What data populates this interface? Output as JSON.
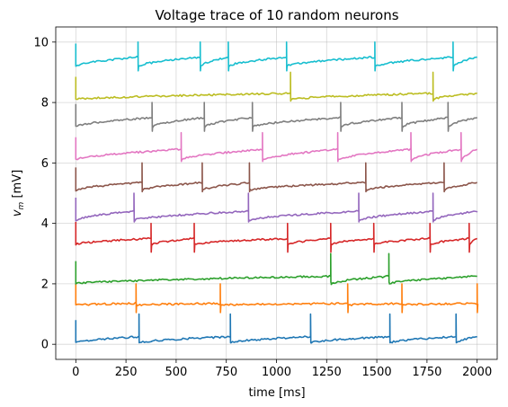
{
  "chart_data": {
    "type": "line",
    "title": "Voltage trace of 10 random neurons",
    "xlabel": "time [ms]",
    "ylabel_main": "v",
    "ylabel_sub": "m",
    "ylabel_unit": " [mV]",
    "xlim": [
      -100,
      2100
    ],
    "ylim": [
      -0.5,
      10.5
    ],
    "xticks": [
      0,
      250,
      500,
      750,
      1000,
      1250,
      1500,
      1750,
      2000
    ],
    "yticks": [
      0,
      2,
      4,
      6,
      8,
      10
    ],
    "grid": true,
    "series": [
      {
        "color": "#1f77b4",
        "offset": 0.0,
        "rest": 0.05,
        "rise": 0.2,
        "spikes": [
          315,
          770,
          1170,
          1565,
          1895
        ]
      },
      {
        "color": "#ff7f0e",
        "offset": 1.0,
        "rest": 0.3,
        "rise": 0.05,
        "spikes": [
          300,
          720,
          1355,
          1625,
          2000
        ]
      },
      {
        "color": "#2ca02c",
        "offset": 2.0,
        "rest": 0.0,
        "rise": 0.25,
        "spikes": [
          1270,
          1560
        ]
      },
      {
        "color": "#d62728",
        "offset": 3.0,
        "rest": 0.3,
        "rise": 0.2,
        "spikes": [
          375,
          590,
          1055,
          1270,
          1485,
          1765,
          1960
        ]
      },
      {
        "color": "#9467bd",
        "offset": 4.0,
        "rest": 0.1,
        "rise": 0.3,
        "spikes": [
          290,
          860,
          1410,
          1780
        ]
      },
      {
        "color": "#8c564b",
        "offset": 5.0,
        "rest": 0.1,
        "rise": 0.25,
        "spikes": [
          330,
          630,
          865,
          1445,
          1835
        ]
      },
      {
        "color": "#e377c2",
        "offset": 6.0,
        "rest": 0.1,
        "rise": 0.35,
        "spikes": [
          525,
          930,
          1305,
          1670,
          1920
        ]
      },
      {
        "color": "#7f7f7f",
        "offset": 7.0,
        "rest": 0.2,
        "rise": 0.3,
        "spikes": [
          380,
          640,
          880,
          1320,
          1625,
          1855
        ]
      },
      {
        "color": "#bcbd22",
        "offset": 8.0,
        "rest": 0.1,
        "rise": 0.2,
        "spikes": [
          1070,
          1780
        ]
      },
      {
        "color": "#17becf",
        "offset": 9.0,
        "rest": 0.2,
        "rise": 0.3,
        "spikes": [
          310,
          620,
          760,
          1050,
          1490,
          1880
        ]
      }
    ]
  }
}
